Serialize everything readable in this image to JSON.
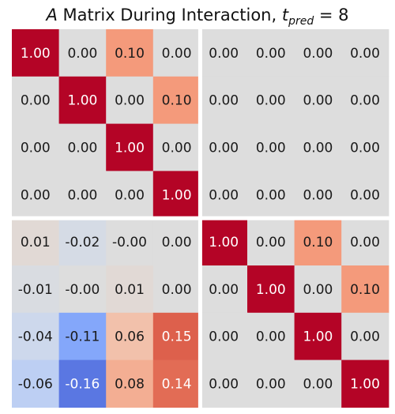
{
  "chart_data": {
    "type": "heatmap",
    "title_parts": {
      "symbol": "A",
      "middle": " Matrix During Interaction, ",
      "t": "t",
      "subscript": "pred",
      "equals": " = 8"
    },
    "rows": 8,
    "cols": 8,
    "block_size": 4,
    "value_format": "2 decimals",
    "values": [
      [
        1.0,
        0.0,
        0.1,
        0.0,
        0.0,
        0.0,
        0.0,
        0.0
      ],
      [
        0.0,
        1.0,
        0.0,
        0.1,
        0.0,
        0.0,
        0.0,
        0.0
      ],
      [
        0.0,
        0.0,
        1.0,
        0.0,
        0.0,
        0.0,
        0.0,
        0.0
      ],
      [
        0.0,
        0.0,
        0.0,
        1.0,
        0.0,
        0.0,
        0.0,
        0.0
      ],
      [
        0.01,
        -0.02,
        -0.0,
        0.0,
        1.0,
        0.0,
        0.1,
        0.0
      ],
      [
        -0.01,
        -0.0,
        0.01,
        0.0,
        0.0,
        1.0,
        0.0,
        0.1
      ],
      [
        -0.04,
        -0.11,
        0.06,
        0.15,
        0.0,
        0.0,
        1.0,
        0.0
      ],
      [
        -0.06,
        -0.16,
        0.08,
        0.14,
        0.0,
        0.0,
        0.0,
        1.0
      ]
    ],
    "labels": [
      [
        "1.00",
        "0.00",
        "0.10",
        "0.00",
        "0.00",
        "0.00",
        "0.00",
        "0.00"
      ],
      [
        "0.00",
        "1.00",
        "0.00",
        "0.10",
        "0.00",
        "0.00",
        "0.00",
        "0.00"
      ],
      [
        "0.00",
        "0.00",
        "1.00",
        "0.00",
        "0.00",
        "0.00",
        "0.00",
        "0.00"
      ],
      [
        "0.00",
        "0.00",
        "0.00",
        "1.00",
        "0.00",
        "0.00",
        "0.00",
        "0.00"
      ],
      [
        "0.01",
        "-0.02",
        "-0.00",
        "0.00",
        "1.00",
        "0.00",
        "0.10",
        "0.00"
      ],
      [
        "-0.01",
        "-0.00",
        "0.01",
        "0.00",
        "0.00",
        "1.00",
        "0.00",
        "0.10"
      ],
      [
        "-0.04",
        "-0.11",
        "0.06",
        "0.15",
        "0.00",
        "0.00",
        "1.00",
        "0.00"
      ],
      [
        "-0.06",
        "-0.16",
        "0.08",
        "0.14",
        "0.00",
        "0.00",
        "0.00",
        "1.00"
      ]
    ],
    "colormap": "coolwarm",
    "color_scale": [
      -0.2,
      0.2
    ],
    "colors": {
      "neutral": "#dddddd",
      "warm_max": "#b40426",
      "cool_max": "#3b4cc0",
      "separator": "#ffffff",
      "dark_text": "#1a1a1a",
      "light_text": "#ffffff"
    }
  }
}
